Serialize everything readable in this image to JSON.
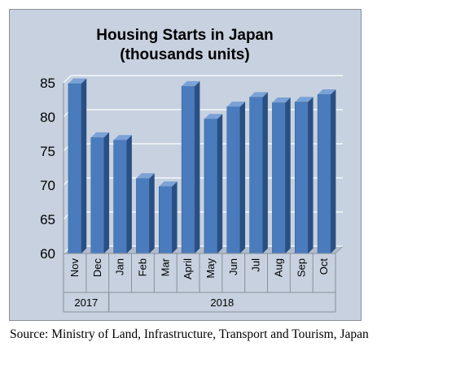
{
  "chart_data": {
    "type": "bar",
    "title": "Housing Starts in Japan",
    "subtitle": "(thousands units)",
    "categories": [
      "Nov",
      "Dec",
      "Jan",
      "Feb",
      "Mar",
      "April",
      "May",
      "Jun",
      "Jul",
      "Aug",
      "Sep",
      "Oct"
    ],
    "values": [
      84.9,
      77.0,
      76.6,
      71.0,
      69.8,
      84.5,
      79.7,
      81.5,
      82.9,
      82.1,
      82.2,
      83.3
    ],
    "year_groups": [
      {
        "label": "2017",
        "span": 2
      },
      {
        "label": "2018",
        "span": 10
      }
    ],
    "ylim": [
      60,
      85
    ],
    "yticks": [
      60,
      65,
      70,
      75,
      80,
      85
    ],
    "grid": true,
    "legend": "none",
    "colors": {
      "bar_front": "#4a7bbd",
      "bar_side": "#2a4f82",
      "bar_top": "#7aa2d6",
      "plot_background": "#c7d1df",
      "grid": "#ffffff"
    }
  },
  "source": "Source: Ministry of Land, Infrastructure, Transport and Tourism, Japan"
}
